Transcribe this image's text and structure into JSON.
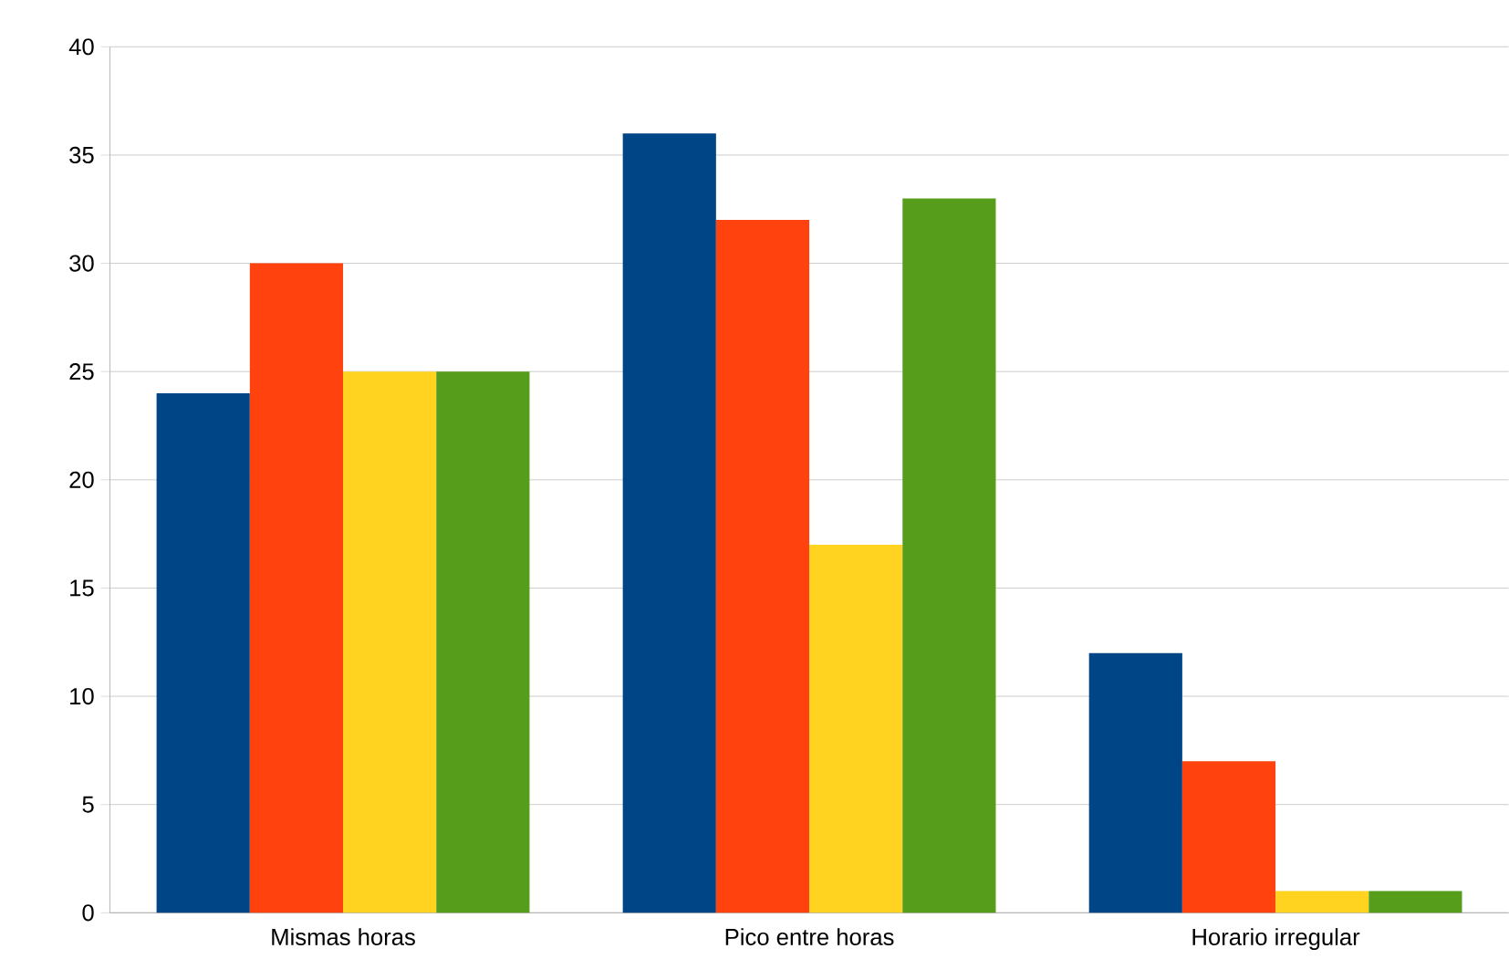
{
  "chart_data": {
    "type": "bar",
    "categories": [
      "Mismas horas",
      "Pico entre horas",
      "Horario irregular"
    ],
    "series": [
      {
        "color": "#004586",
        "values": [
          24,
          36,
          12
        ]
      },
      {
        "color": "#ff420e",
        "values": [
          30,
          32,
          7
        ]
      },
      {
        "color": "#ffd320",
        "values": [
          25,
          17,
          1
        ]
      },
      {
        "color": "#579d1c",
        "values": [
          25,
          33,
          1
        ]
      }
    ],
    "ylim": [
      0,
      40
    ],
    "yticks": [
      0,
      5,
      10,
      15,
      20,
      25,
      30,
      35,
      40
    ],
    "grid": "y"
  }
}
